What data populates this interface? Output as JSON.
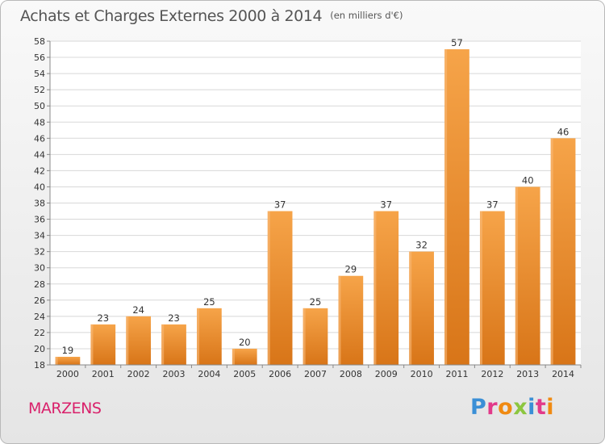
{
  "chart_data": {
    "type": "bar",
    "title": "Achats et Charges Externes 2000 à 2014",
    "subtitle": "(en milliers d'€)",
    "categories": [
      "2000",
      "2001",
      "2002",
      "2003",
      "2004",
      "2005",
      "2006",
      "2007",
      "2008",
      "2009",
      "2010",
      "2011",
      "2012",
      "2013",
      "2014"
    ],
    "values": [
      19,
      23,
      24,
      23,
      25,
      20,
      37,
      25,
      29,
      37,
      32,
      57,
      37,
      40,
      46
    ],
    "ylim": [
      18,
      58
    ],
    "yticks": [
      18,
      20,
      22,
      24,
      26,
      28,
      30,
      32,
      34,
      36,
      38,
      40,
      42,
      44,
      46,
      48,
      50,
      52,
      54,
      56,
      58
    ],
    "grid": true,
    "bar_color": "#f39a3a",
    "bar_color_dark": "#d87518"
  },
  "commune": "MARZENS",
  "logo": {
    "text": "Proxiti",
    "letters": [
      "P",
      "r",
      "o",
      "x",
      "i",
      "t",
      "i"
    ]
  },
  "colors": {
    "commune": "#d9216b",
    "title": "#555555",
    "grid": "#d8d8d8"
  }
}
